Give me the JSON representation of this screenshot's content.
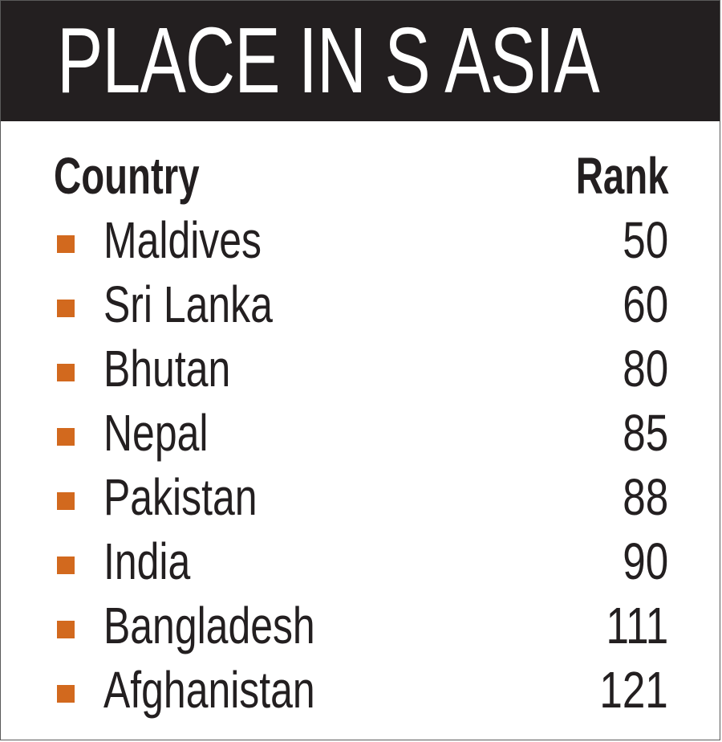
{
  "title": "PLACE IN S ASIA",
  "colors": {
    "title_bar": "#231f20",
    "title_text": "#ffffff",
    "bullet": "#d2691e",
    "text": "#231f20"
  },
  "chart_data": {
    "type": "table",
    "title": "PLACE IN S ASIA",
    "columns": [
      "Country",
      "Rank"
    ],
    "rows": [
      {
        "country": "Maldives",
        "rank": "50"
      },
      {
        "country": "Sri Lanka",
        "rank": "60"
      },
      {
        "country": "Bhutan",
        "rank": "80"
      },
      {
        "country": "Nepal",
        "rank": "85"
      },
      {
        "country": "Pakistan",
        "rank": "88"
      },
      {
        "country": "India",
        "rank": "90"
      },
      {
        "country": "Bangladesh",
        "rank": "111"
      },
      {
        "country": "Afghanistan",
        "rank": "121"
      }
    ]
  }
}
